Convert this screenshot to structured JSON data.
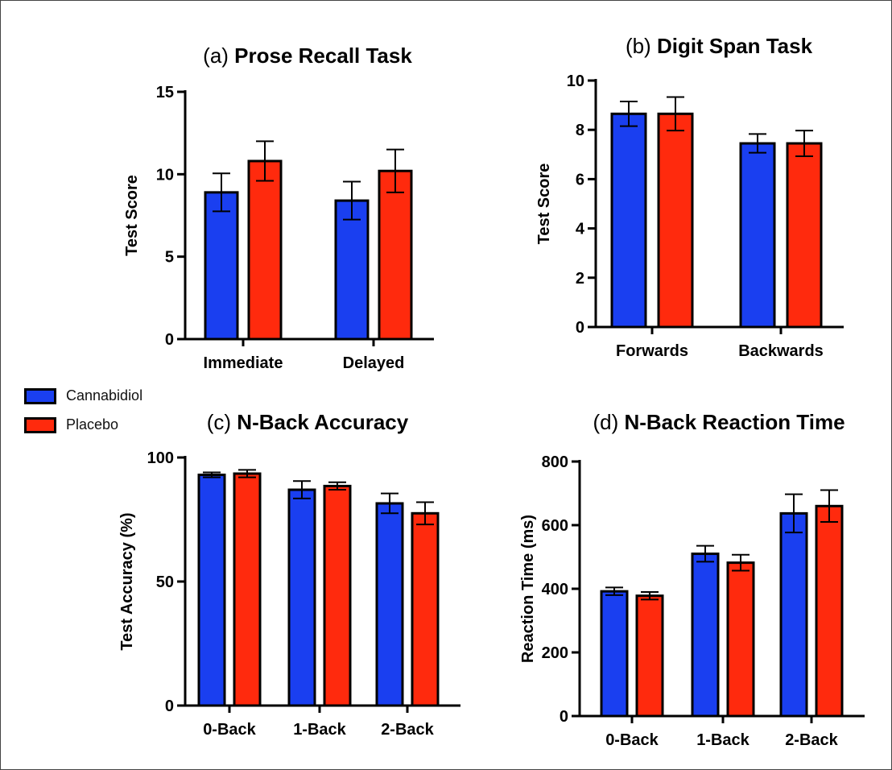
{
  "colors": {
    "cannabidiol": "#1a3ff0",
    "placebo": "#ff2a0d",
    "axis": "#000000"
  },
  "legend": [
    {
      "name": "Cannabidiol",
      "color": "#1a3ff0"
    },
    {
      "name": "Placebo",
      "color": "#ff2a0d"
    }
  ],
  "chart_data": [
    {
      "id": "a",
      "type": "bar",
      "prefix": "(a)",
      "title": "Prose Recall Task",
      "ylabel": "Test Score",
      "xlabel": "",
      "ylim": [
        0,
        15
      ],
      "yticks": [
        0,
        5,
        10,
        15
      ],
      "categories": [
        "Immediate",
        "Delayed"
      ],
      "series": [
        {
          "name": "Cannabidiol",
          "values": [
            8.9,
            8.4
          ],
          "errors": [
            1.15,
            1.15
          ]
        },
        {
          "name": "Placebo",
          "values": [
            10.8,
            10.2
          ],
          "errors": [
            1.2,
            1.3
          ]
        }
      ],
      "grid": false
    },
    {
      "id": "b",
      "type": "bar",
      "prefix": "(b)",
      "title": "Digit Span Task",
      "ylabel": "Test Score",
      "xlabel": "",
      "ylim": [
        0,
        10
      ],
      "yticks": [
        0,
        2,
        4,
        6,
        8,
        10
      ],
      "categories": [
        "Forwards",
        "Backwards"
      ],
      "series": [
        {
          "name": "Cannabidiol",
          "values": [
            8.65,
            7.45
          ],
          "errors": [
            0.5,
            0.38
          ]
        },
        {
          "name": "Placebo",
          "values": [
            8.65,
            7.45
          ],
          "errors": [
            0.68,
            0.52
          ]
        }
      ],
      "grid": false
    },
    {
      "id": "c",
      "type": "bar",
      "prefix": "(c)",
      "title": "N-Back Accuracy",
      "ylabel": "Test Accuracy (%)",
      "xlabel": "",
      "ylim": [
        0,
        100
      ],
      "yticks": [
        0,
        50,
        100
      ],
      "categories": [
        "0-Back",
        "1-Back",
        "2-Back"
      ],
      "series": [
        {
          "name": "Cannabidiol",
          "values": [
            93,
            87,
            81.5
          ],
          "errors": [
            1.0,
            3.5,
            4.0
          ]
        },
        {
          "name": "Placebo",
          "values": [
            93.5,
            88.5,
            77.5
          ],
          "errors": [
            1.5,
            1.5,
            4.5
          ]
        }
      ],
      "grid": false
    },
    {
      "id": "d",
      "type": "bar",
      "prefix": "(d)",
      "title": "N-Back Reaction Time",
      "ylabel": "Reaction Time (ms)",
      "xlabel": "",
      "ylim": [
        0,
        800
      ],
      "yticks": [
        0,
        200,
        400,
        600,
        800
      ],
      "categories": [
        "0-Back",
        "1-Back",
        "2-Back"
      ],
      "series": [
        {
          "name": "Cannabidiol",
          "values": [
            392,
            510,
            637
          ],
          "errors": [
            12,
            25,
            60
          ]
        },
        {
          "name": "Placebo",
          "values": [
            378,
            482,
            660
          ],
          "errors": [
            12,
            25,
            50
          ]
        }
      ],
      "grid": false
    }
  ]
}
